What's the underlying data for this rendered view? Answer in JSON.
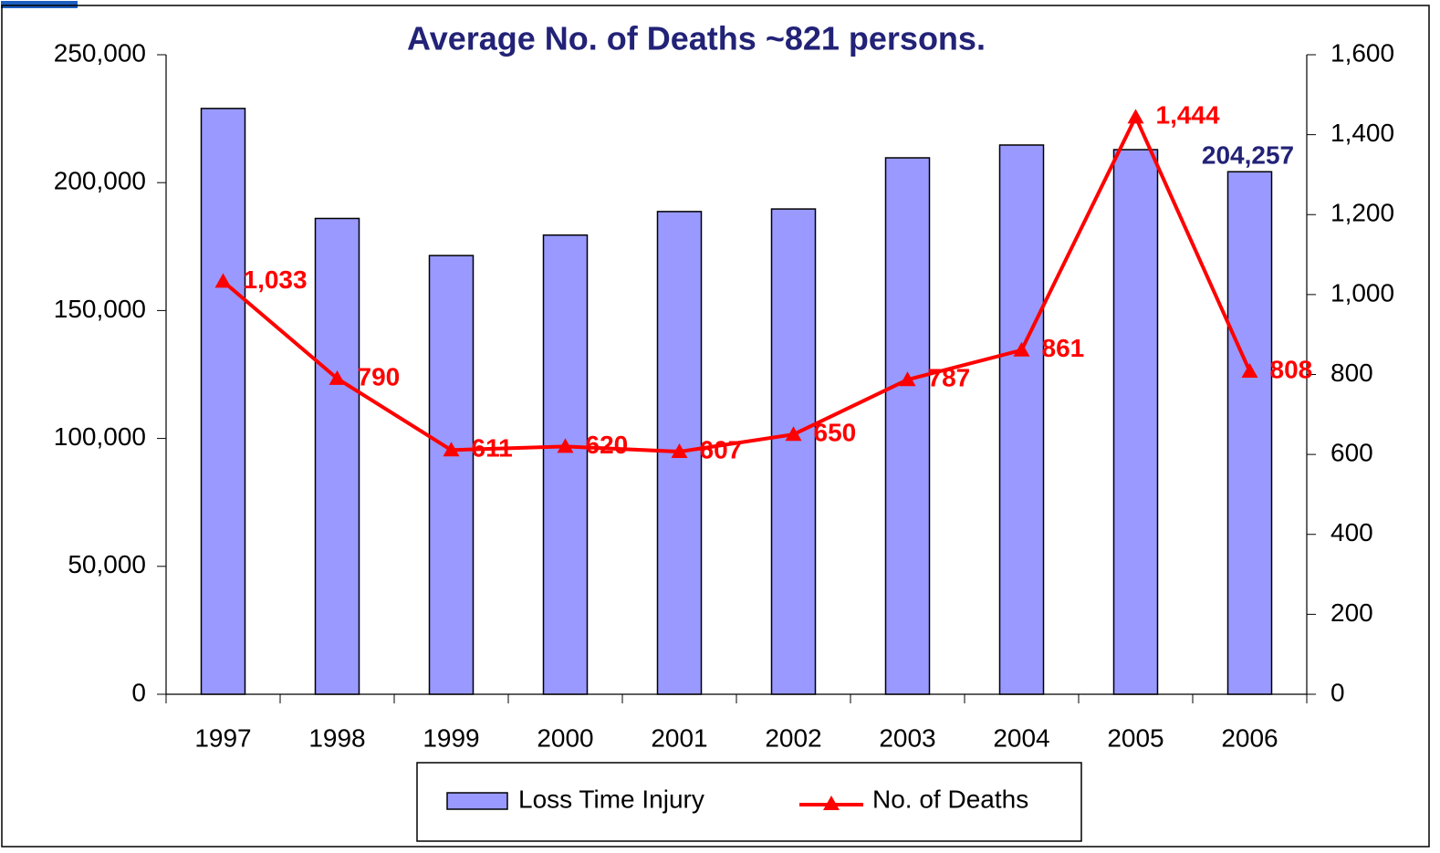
{
  "chart_data": {
    "type": "bar_line",
    "title": "Average No. of Deaths ~821 persons.",
    "categories": [
      "1997",
      "1998",
      "1999",
      "2000",
      "2001",
      "2002",
      "2003",
      "2004",
      "2005",
      "2006"
    ],
    "series": [
      {
        "name": "Loss Time Injury",
        "type": "bar",
        "color": "#9999ff",
        "axis": "y",
        "values": [
          229000,
          186000,
          171500,
          179500,
          188700,
          189700,
          209700,
          214700,
          212900,
          204257
        ],
        "value_labels": [
          null,
          null,
          null,
          null,
          null,
          null,
          null,
          null,
          null,
          "204,257"
        ]
      },
      {
        "name": "No. of Deaths",
        "type": "line",
        "color": "#ff0000",
        "axis": "y2",
        "values": [
          1033,
          790,
          611,
          620,
          607,
          650,
          787,
          861,
          1444,
          808
        ],
        "value_labels": [
          "1,033",
          "790",
          "611",
          "620",
          "607",
          "650",
          "787",
          "861",
          "1,444",
          "808"
        ]
      }
    ],
    "ylim": [
      0,
      250000
    ],
    "yticks": [
      0,
      {
        "value": 50000,
        "label": "50,000"
      },
      {
        "value": 100000,
        "label": "100,000"
      },
      {
        "value": 150000,
        "label": "150,000"
      },
      {
        "value": 200000,
        "label": "200,000"
      },
      {
        "value": 250000,
        "label": "250,000"
      }
    ],
    "y2lim": [
      0,
      1600
    ],
    "y2ticks": [
      0,
      200,
      400,
      600,
      800,
      {
        "value": 1000,
        "label": "1,000"
      },
      {
        "value": 1200,
        "label": "1,200"
      },
      {
        "value": 1400,
        "label": "1,400"
      },
      {
        "value": 1600,
        "label": "1,600"
      }
    ],
    "grid": false
  }
}
